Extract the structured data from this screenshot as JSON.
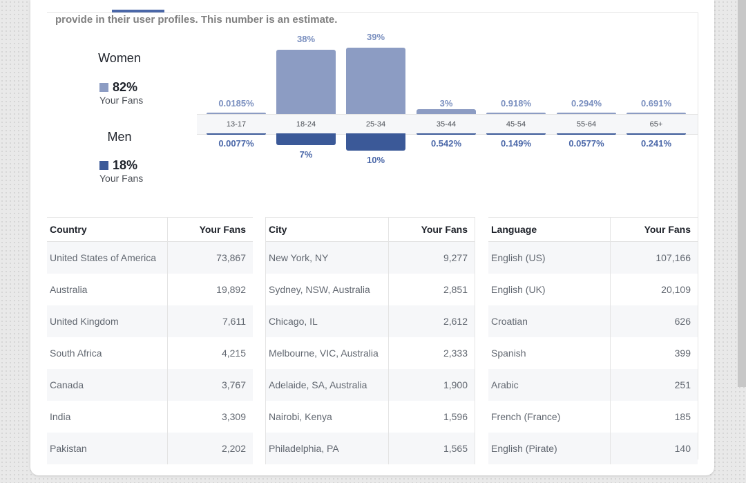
{
  "intro_text": "provide in their user profiles. This number is an estimate.",
  "colors": {
    "women": "#8c9cc3",
    "men": "#3b5998"
  },
  "gender": {
    "women": {
      "label": "Women",
      "percent": "82%",
      "sub": "Your Fans"
    },
    "men": {
      "label": "Men",
      "percent": "18%",
      "sub": "Your Fans"
    }
  },
  "chart_data": {
    "type": "bar",
    "categories": [
      "13-17",
      "18-24",
      "25-34",
      "35-44",
      "45-54",
      "55-64",
      "65+"
    ],
    "series": [
      {
        "name": "Women",
        "values": [
          0.0185,
          38,
          39,
          3,
          0.918,
          0.294,
          0.691
        ],
        "labels": [
          "0.0185%",
          "38%",
          "39%",
          "3%",
          "0.918%",
          "0.294%",
          "0.691%"
        ]
      },
      {
        "name": "Men",
        "values": [
          0.0077,
          7,
          10,
          0.542,
          0.149,
          0.0577,
          0.241
        ],
        "labels": [
          "0.0077%",
          "7%",
          "10%",
          "0.542%",
          "0.149%",
          "0.0577%",
          "0.241%"
        ]
      }
    ]
  },
  "tables": [
    {
      "col1": "Country",
      "col2": "Your Fans",
      "rows": [
        [
          "United States of America",
          "73,867"
        ],
        [
          "Australia",
          "19,892"
        ],
        [
          "United Kingdom",
          "7,611"
        ],
        [
          "South Africa",
          "4,215"
        ],
        [
          "Canada",
          "3,767"
        ],
        [
          "India",
          "3,309"
        ],
        [
          "Pakistan",
          "2,202"
        ]
      ]
    },
    {
      "col1": "City",
      "col2": "Your Fans",
      "rows": [
        [
          "New York, NY",
          "9,277"
        ],
        [
          "Sydney, NSW, Australia",
          "2,851"
        ],
        [
          "Chicago, IL",
          "2,612"
        ],
        [
          "Melbourne, VIC, Australia",
          "2,333"
        ],
        [
          "Adelaide, SA, Australia",
          "1,900"
        ],
        [
          "Nairobi, Kenya",
          "1,596"
        ],
        [
          "Philadelphia, PA",
          "1,565"
        ]
      ]
    },
    {
      "col1": "Language",
      "col2": "Your Fans",
      "rows": [
        [
          "English (US)",
          "107,166"
        ],
        [
          "English (UK)",
          "20,109"
        ],
        [
          "Croatian",
          "626"
        ],
        [
          "Spanish",
          "399"
        ],
        [
          "Arabic",
          "251"
        ],
        [
          "French (France)",
          "185"
        ],
        [
          "English (Pirate)",
          "140"
        ]
      ]
    }
  ]
}
